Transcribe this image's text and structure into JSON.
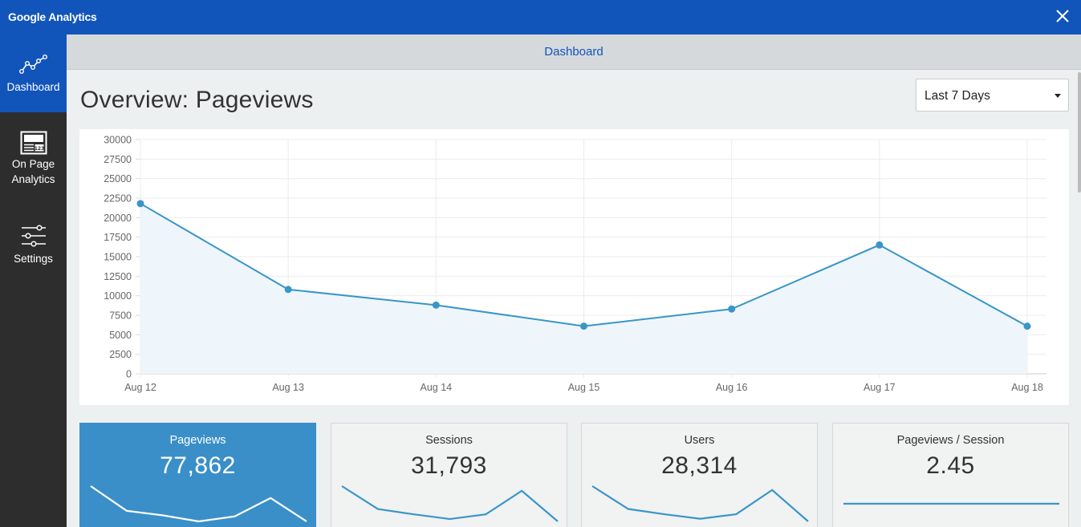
{
  "window": {
    "title": "Google Analytics",
    "close_icon": "close-icon"
  },
  "sidebar": {
    "items": [
      {
        "label": "Dashboard",
        "icon": "line-chart-icon",
        "active": true
      },
      {
        "label": "On Page\nAnalytics",
        "icon": "page-analytics-icon",
        "active": false
      },
      {
        "label": "Settings",
        "icon": "sliders-icon",
        "active": false
      }
    ]
  },
  "topbar": {
    "breadcrumb": "Dashboard"
  },
  "main": {
    "title": "Overview: Pageviews",
    "range_select": {
      "value": "Last 7 Days"
    }
  },
  "chart_data": {
    "type": "area",
    "categories": [
      "Aug 12",
      "Aug 13",
      "Aug 14",
      "Aug 15",
      "Aug 16",
      "Aug 17",
      "Aug 18"
    ],
    "series": [
      {
        "values": [
          21800,
          10800,
          8800,
          6100,
          8300,
          16500,
          6100
        ]
      }
    ],
    "ylim": [
      0,
      30000
    ],
    "yticks": [
      0,
      2500,
      5000,
      7500,
      10000,
      12500,
      15000,
      17500,
      20000,
      22500,
      25000,
      27500,
      30000
    ],
    "grid": true,
    "title": "",
    "xlabel": "",
    "ylabel": "",
    "colors": {
      "line": "#3a95c8",
      "fill": "#eef6fb"
    }
  },
  "stats": [
    {
      "label": "Pageviews",
      "value": "77,862",
      "active": true,
      "spark": [
        21800,
        10800,
        8800,
        6100,
        8300,
        16500,
        6100
      ]
    },
    {
      "label": "Sessions",
      "value": "31,793",
      "active": false,
      "spark": [
        8400,
        4500,
        3600,
        2800,
        3600,
        7600,
        2400
      ]
    },
    {
      "label": "Users",
      "value": "28,314",
      "active": false,
      "spark": [
        7600,
        4100,
        3300,
        2600,
        3300,
        7000,
        2200
      ]
    },
    {
      "label": "Pageviews / Session",
      "value": "2.45",
      "active": false,
      "spark": [
        2.45,
        2.45,
        2.45,
        2.45,
        2.45,
        2.45,
        2.45
      ]
    }
  ],
  "colors": {
    "brand": "#1155bb",
    "accent": "#3a8fc8",
    "sidebar_bg": "#2d2d2d"
  }
}
